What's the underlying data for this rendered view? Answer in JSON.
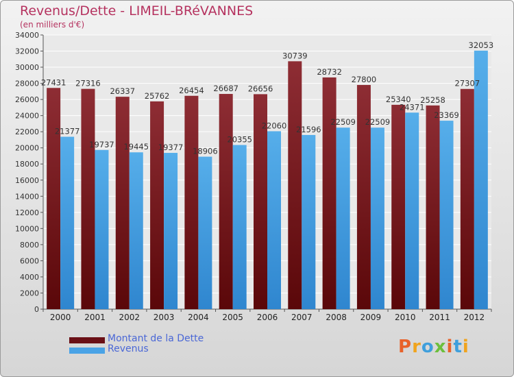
{
  "header": {
    "title": "Revenus/Dette - LIMEIL-BRéVANNES",
    "subtitle": "(en milliers d'€)"
  },
  "chart_data": {
    "type": "bar",
    "title": "Revenus/Dette - LIMEIL-BRéVANNES",
    "subtitle": "(en milliers d'€)",
    "categories": [
      "2000",
      "2001",
      "2002",
      "2003",
      "2004",
      "2005",
      "2006",
      "2007",
      "2008",
      "2009",
      "2010",
      "2011",
      "2012"
    ],
    "series": [
      {
        "name": "Montant de la Dette",
        "color": "#8b2a33",
        "values": [
          27431,
          27316,
          26337,
          25762,
          26454,
          26687,
          26656,
          30739,
          28732,
          27800,
          25340,
          25258,
          27307
        ]
      },
      {
        "name": "Revenus",
        "color": "#4aa3e6",
        "values": [
          21377,
          19737,
          19445,
          19377,
          18906,
          20355,
          22060,
          21596,
          22509,
          22509,
          24371,
          23369,
          32053
        ]
      }
    ],
    "ylim": [
      0,
      34000
    ],
    "yticks": [
      0,
      2000,
      4000,
      6000,
      8000,
      10000,
      12000,
      14000,
      16000,
      18000,
      20000,
      22000,
      24000,
      26000,
      28000,
      30000,
      32000,
      34000
    ],
    "grid": true,
    "legend_position": "bottom-left"
  },
  "legend": {
    "items": [
      {
        "label": "Montant de la Dette",
        "color": "#6a1016"
      },
      {
        "label": "Revenus",
        "color": "#4aa3e6"
      }
    ]
  },
  "logo": {
    "text": "Proxiti",
    "colors": [
      "#e8622a",
      "#f0a41e",
      "#3f9fdc",
      "#6cbf3c",
      "#e8622a",
      "#3f9fdc",
      "#f0a41e"
    ]
  }
}
